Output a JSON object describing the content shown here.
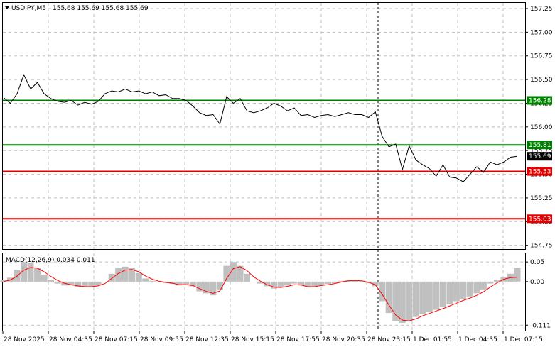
{
  "header": {
    "arrow_icon": "triangle-down-icon",
    "symbol": "USDJPY,M5",
    "ohlc": "155.68 155.69 155.68 155.69"
  },
  "price_axis": {
    "ticks": [
      "157.25",
      "157.00",
      "156.75",
      "156.50",
      "156.25",
      "156.00",
      "155.75",
      "155.50",
      "155.25",
      "155.00",
      "154.75"
    ],
    "range": [
      154.71,
      157.31
    ]
  },
  "levels": [
    {
      "name": "level-156-28",
      "value": 156.28,
      "label": "156.28",
      "color": "#008000"
    },
    {
      "name": "level-155-81",
      "value": 155.81,
      "label": "155.81",
      "color": "#008000"
    },
    {
      "name": "level-155-53",
      "value": 155.53,
      "label": "155.53",
      "color": "#e00000"
    },
    {
      "name": "level-155-03",
      "value": 155.03,
      "label": "155.03",
      "color": "#e00000"
    }
  ],
  "current_price": {
    "value": 155.69,
    "label": "155.69",
    "color": "#000000"
  },
  "time_axis": {
    "labels": [
      "28 Nov 2025",
      "28 Nov 04:35",
      "28 Nov 07:15",
      "28 Nov 09:55",
      "28 Nov 12:35",
      "28 Nov 15:15",
      "28 Nov 17:55",
      "28 Nov 20:35",
      "28 Nov 23:15",
      "1 Dec 01:55",
      "1 Dec 04:35",
      "1 Dec 07:15"
    ]
  },
  "macd": {
    "label": "MACD(12,26,9) 0.034 0.011",
    "ticks": [
      "0.05",
      "0.00",
      "-0.111"
    ],
    "range": [
      -0.125,
      0.072
    ]
  },
  "colors": {
    "price_line": "#000000",
    "grid": "#c0c0c0",
    "histogram": "#c0c0c0",
    "signal": "#ff0000",
    "support": "#e00000",
    "resistance": "#008000"
  },
  "chart_data": {
    "type": "line",
    "title": "USDJPY,M5",
    "ylim": [
      154.71,
      157.31
    ],
    "x_labels": [
      "28 Nov 2025",
      "28 Nov 04:35",
      "28 Nov 07:15",
      "28 Nov 09:55",
      "28 Nov 12:35",
      "28 Nov 15:15",
      "28 Nov 17:55",
      "28 Nov 20:35",
      "28 Nov 23:15",
      "1 Dec 01:55",
      "1 Dec 04:35",
      "1 Dec 07:15"
    ],
    "series": [
      {
        "values": [
          156.31,
          156.25,
          156.35,
          156.55,
          156.4,
          156.47,
          156.35,
          156.3,
          156.27,
          156.26,
          156.28,
          156.23,
          156.26,
          156.24,
          156.27,
          156.35,
          156.38,
          156.37,
          156.4,
          156.37,
          156.38,
          156.35,
          156.37,
          156.33,
          156.34,
          156.3,
          156.3,
          156.28,
          156.22,
          156.15,
          156.12,
          156.13,
          156.03,
          156.32,
          156.25,
          156.3,
          156.17,
          156.15,
          156.17,
          156.2,
          156.25,
          156.22,
          156.17,
          156.2,
          156.12,
          156.13,
          156.1,
          156.12,
          156.13,
          156.11,
          156.13,
          156.15,
          156.13,
          156.13,
          156.1,
          156.16,
          155.9,
          155.79,
          155.82,
          155.55,
          155.8,
          155.65,
          155.6,
          155.56,
          155.48,
          155.6,
          155.47,
          155.46,
          155.42,
          155.5,
          155.58,
          155.52,
          155.63,
          155.6,
          155.63,
          155.68,
          155.69
        ]
      }
    ],
    "levels": [
      156.28,
      155.81,
      155.53,
      155.03
    ],
    "macd": {
      "params": "12,26,9",
      "value": 0.034,
      "signal_value": 0.011,
      "ylim": [
        -0.125,
        0.072
      ],
      "histogram": [
        0.005,
        0.01,
        0.03,
        0.05,
        0.048,
        0.035,
        0.018,
        0.005,
        -0.005,
        -0.01,
        -0.01,
        -0.013,
        -0.014,
        -0.012,
        -0.01,
        0.0,
        0.02,
        0.035,
        0.038,
        0.035,
        0.022,
        0.008,
        0.002,
        -0.002,
        -0.004,
        -0.006,
        -0.01,
        -0.008,
        -0.012,
        -0.025,
        -0.03,
        -0.035,
        -0.02,
        0.04,
        0.05,
        0.04,
        0.02,
        0.0,
        -0.005,
        -0.012,
        -0.018,
        -0.015,
        -0.01,
        -0.005,
        -0.01,
        -0.015,
        -0.012,
        -0.008,
        -0.006,
        -0.004,
        0.002,
        0.004,
        0.003,
        0.002,
        -0.004,
        -0.012,
        -0.05,
        -0.08,
        -0.1,
        -0.105,
        -0.1,
        -0.09,
        -0.082,
        -0.078,
        -0.072,
        -0.065,
        -0.058,
        -0.05,
        -0.044,
        -0.038,
        -0.03,
        -0.02,
        -0.005,
        0.005,
        0.012,
        0.02,
        0.034
      ],
      "signal": [
        0.0,
        0.004,
        0.014,
        0.029,
        0.036,
        0.034,
        0.025,
        0.013,
        0.003,
        -0.004,
        -0.008,
        -0.011,
        -0.013,
        -0.013,
        -0.011,
        -0.005,
        0.008,
        0.021,
        0.029,
        0.031,
        0.025,
        0.014,
        0.006,
        0.001,
        -0.002,
        -0.004,
        -0.008,
        -0.008,
        -0.01,
        -0.018,
        -0.025,
        -0.03,
        -0.024,
        0.008,
        0.033,
        0.038,
        0.028,
        0.012,
        0.001,
        -0.008,
        -0.014,
        -0.015,
        -0.012,
        -0.008,
        -0.009,
        -0.013,
        -0.013,
        -0.01,
        -0.008,
        -0.005,
        -0.001,
        0.002,
        0.003,
        0.002,
        -0.002,
        -0.008,
        -0.032,
        -0.06,
        -0.085,
        -0.098,
        -0.1,
        -0.095,
        -0.087,
        -0.081,
        -0.075,
        -0.069,
        -0.062,
        -0.055,
        -0.048,
        -0.042,
        -0.035,
        -0.026,
        -0.014,
        -0.003,
        0.006,
        0.01,
        0.011
      ]
    }
  }
}
